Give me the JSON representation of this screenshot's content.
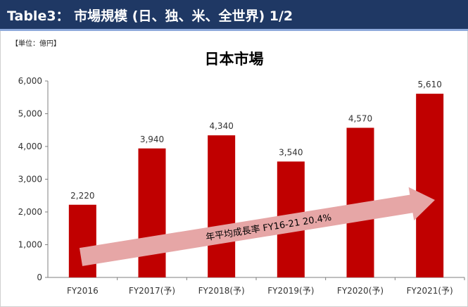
{
  "header": {
    "title": "Table3： 市場規模 (日、独、米、全世界) 1/2"
  },
  "unit_note": "【単位：億円】",
  "colors": {
    "header_bg": "#1f3864",
    "bar": "#c00000",
    "arrow": "#e6a6a6"
  },
  "chart_data": {
    "type": "bar",
    "title": "日本市場",
    "categories": [
      "FY2016",
      "FY2017(予)",
      "FY2018(予)",
      "FY2019(予)",
      "FY2020(予)",
      "FY2021(予)"
    ],
    "values": [
      2220,
      3940,
      4340,
      3540,
      4570,
      5610
    ],
    "value_labels": [
      "2,220",
      "3,940",
      "4,340",
      "3,540",
      "4,570",
      "5,610"
    ],
    "ylim": [
      0,
      6000
    ],
    "yticks": [
      0,
      1000,
      2000,
      3000,
      4000,
      5000,
      6000
    ],
    "ytick_labels": [
      "0",
      "1,000",
      "2,000",
      "3,000",
      "4,000",
      "5,000",
      "6,000"
    ],
    "xlabel": "",
    "ylabel": "",
    "grid": false,
    "annotation": {
      "text": "年平均成長率 FY16-21 20.4%"
    }
  }
}
